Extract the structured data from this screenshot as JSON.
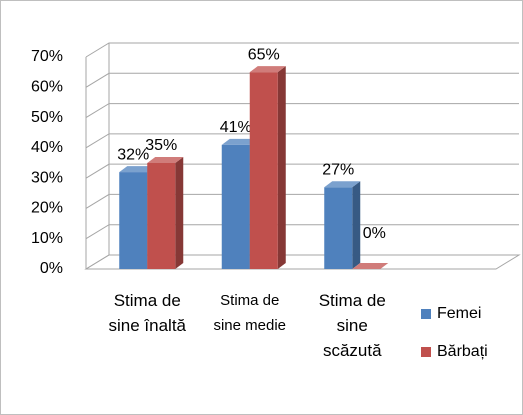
{
  "chart_data": {
    "type": "bar3d",
    "categories": [
      "Stima de sine înaltă",
      "Stima de sine medie",
      "Stima de sine scăzută"
    ],
    "series": [
      {
        "name": "Femei",
        "color": "#4f81bd",
        "values": [
          32,
          41,
          27
        ],
        "value_labels": [
          "32%",
          "41%",
          "27%"
        ]
      },
      {
        "name": "Bărbați",
        "color": "#c0504d",
        "values": [
          35,
          65,
          0
        ],
        "value_labels": [
          "35%",
          "65%",
          "0%"
        ]
      }
    ],
    "ylim": [
      0,
      70
    ],
    "yticks": [
      {
        "value": 0,
        "label": "0%"
      },
      {
        "value": 10,
        "label": "10%"
      },
      {
        "value": 20,
        "label": "20%"
      },
      {
        "value": 30,
        "label": "30%"
      },
      {
        "value": 40,
        "label": "40%"
      },
      {
        "value": 50,
        "label": "50%"
      },
      {
        "value": 60,
        "label": "60%"
      },
      {
        "value": 70,
        "label": "70%"
      }
    ],
    "grid": true,
    "legend": "right"
  }
}
